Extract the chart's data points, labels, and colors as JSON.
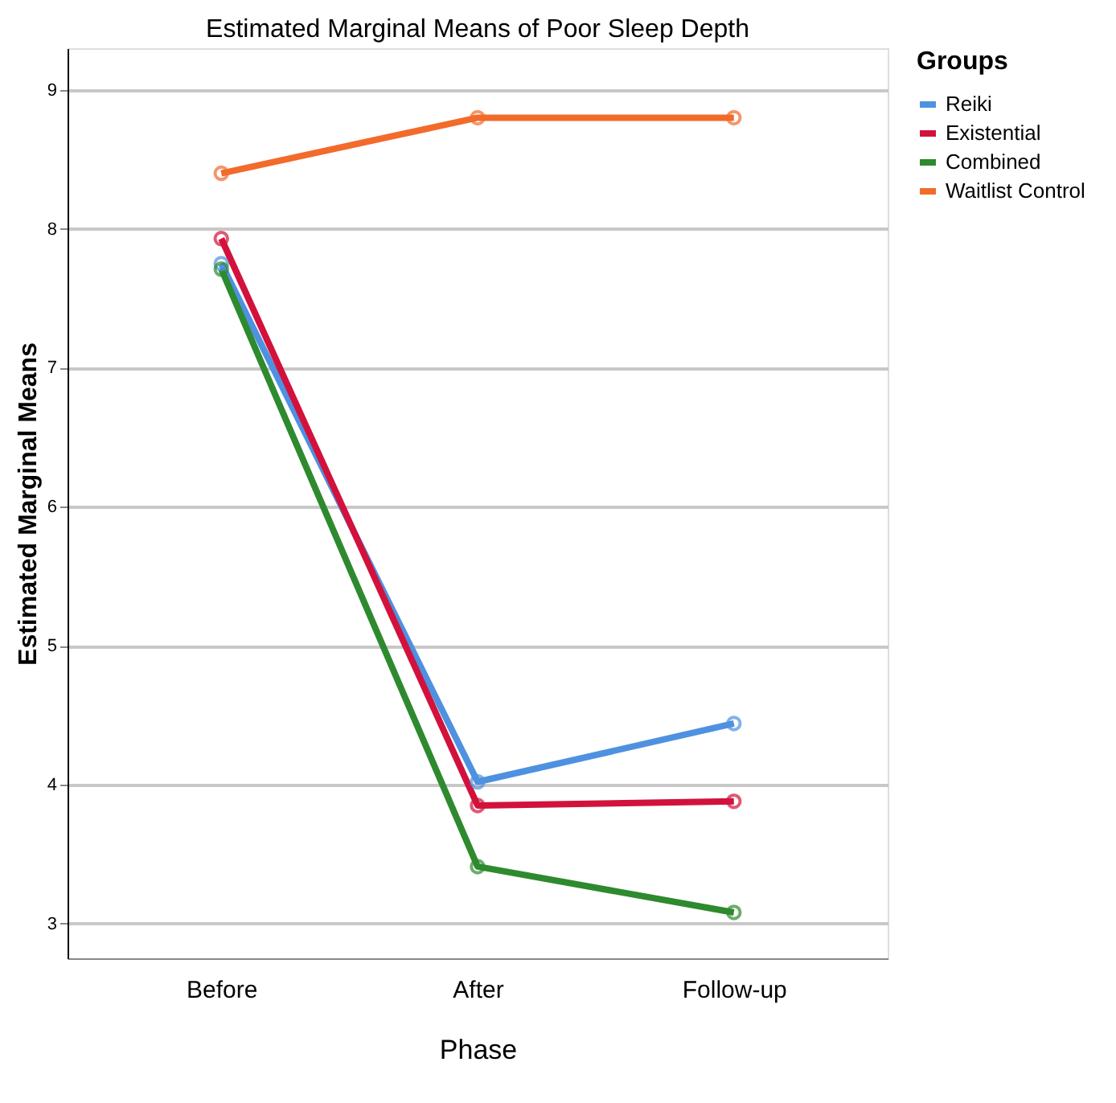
{
  "chart_data": {
    "type": "line",
    "title": "Estimated Marginal Means of Poor Sleep Depth",
    "xlabel": "Phase",
    "ylabel": "Estimated Marginal Means",
    "legend_title": "Groups",
    "categories": [
      "Before",
      "After",
      "Follow-up"
    ],
    "series": [
      {
        "name": "Reiki",
        "color": "#4e91e0",
        "values": [
          7.75,
          4.02,
          4.44
        ]
      },
      {
        "name": "Existential",
        "color": "#d2123c",
        "values": [
          7.93,
          3.85,
          3.88
        ]
      },
      {
        "name": "Combined",
        "color": "#2e8a2e",
        "values": [
          7.71,
          3.41,
          3.08
        ]
      },
      {
        "name": "Waitlist Control",
        "color": "#f26b2a",
        "values": [
          8.4,
          8.8,
          8.8
        ]
      }
    ],
    "ylim": [
      2.75,
      9.3
    ],
    "yticks": [
      3,
      4,
      5,
      6,
      7,
      8,
      9
    ],
    "grid": "y",
    "legend": "top right",
    "marker": "circle",
    "line_style": "solid"
  }
}
